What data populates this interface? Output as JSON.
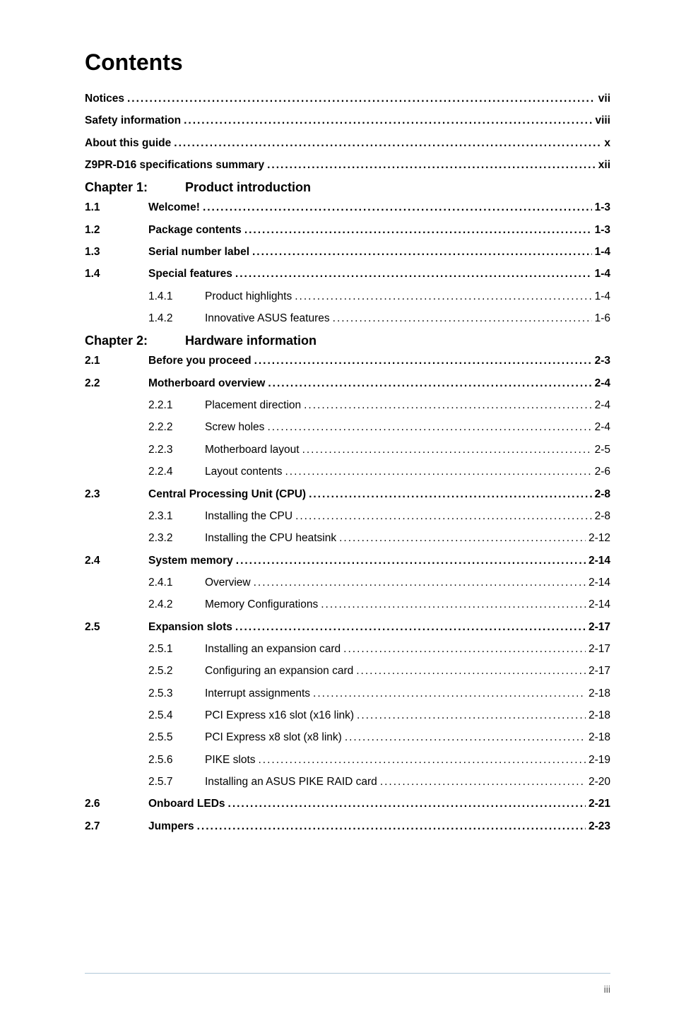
{
  "title": "Contents",
  "front": [
    {
      "label": "Notices",
      "page": "vii"
    },
    {
      "label": "Safety information",
      "page": "viii"
    },
    {
      "label": "About this guide",
      "page": "x"
    },
    {
      "label": "Z9PR-D16 specifications summary",
      "page": "xii"
    }
  ],
  "chapters": [
    {
      "num": "Chapter 1:",
      "title": "Product introduction",
      "sections": [
        {
          "num": "1.1",
          "label": "Welcome!",
          "page": "1-3",
          "bold": true,
          "subs": []
        },
        {
          "num": "1.2",
          "label": "Package contents",
          "page": "1-3",
          "bold": true,
          "subs": []
        },
        {
          "num": "1.3",
          "label": "Serial number label",
          "page": "1-4",
          "bold": true,
          "subs": []
        },
        {
          "num": "1.4",
          "label": "Special features",
          "page": "1-4",
          "bold": true,
          "subs": [
            {
              "num": "1.4.1",
              "label": "Product highlights",
              "page": "1-4"
            },
            {
              "num": "1.4.2",
              "label": "Innovative ASUS features",
              "page": "1-6"
            }
          ]
        }
      ]
    },
    {
      "num": "Chapter 2:",
      "title": "Hardware information",
      "sections": [
        {
          "num": "2.1",
          "label": "Before you proceed",
          "page": "2-3",
          "bold": true,
          "subs": []
        },
        {
          "num": "2.2",
          "label": "Motherboard overview",
          "page": "2-4",
          "bold": true,
          "subs": [
            {
              "num": "2.2.1",
              "label": "Placement direction",
              "page": "2-4"
            },
            {
              "num": "2.2.2",
              "label": "Screw holes",
              "page": "2-4"
            },
            {
              "num": "2.2.3",
              "label": "Motherboard layout",
              "page": "2-5"
            },
            {
              "num": "2.2.4",
              "label": "Layout contents",
              "page": "2-6"
            }
          ]
        },
        {
          "num": "2.3",
          "label": "Central Processing Unit (CPU)",
          "page": "2-8",
          "bold": true,
          "subs": [
            {
              "num": "2.3.1",
              "label": "Installing the CPU",
              "page": "2-8"
            },
            {
              "num": "2.3.2",
              "label": "Installing the CPU heatsink",
              "page": "2-12"
            }
          ]
        },
        {
          "num": "2.4",
          "label": "System memory",
          "page": "2-14",
          "bold": true,
          "subs": [
            {
              "num": "2.4.1",
              "label": "Overview",
              "page": "2-14"
            },
            {
              "num": "2.4.2",
              "label": "Memory Configurations",
              "page": "2-14"
            }
          ]
        },
        {
          "num": "2.5",
          "label": "Expansion slots",
          "page": "2-17",
          "bold": true,
          "subs": [
            {
              "num": "2.5.1",
              "label": "Installing an expansion card",
              "page": "2-17"
            },
            {
              "num": "2.5.2",
              "label": "Configuring an expansion card",
              "page": "2-17"
            },
            {
              "num": "2.5.3",
              "label": "Interrupt assignments",
              "page": "2-18"
            },
            {
              "num": "2.5.4",
              "label": "PCI Express x16 slot (x16 link)",
              "page": "2-18"
            },
            {
              "num": "2.5.5",
              "label": "PCI Express x8 slot (x8 link)",
              "page": "2-18"
            },
            {
              "num": "2.5.6",
              "label": "PIKE slots",
              "page": "2-19"
            },
            {
              "num": "2.5.7",
              "label": "Installing an ASUS PIKE RAID card",
              "page": "2-20"
            }
          ]
        },
        {
          "num": "2.6",
          "label": "Onboard LEDs",
          "page": "2-21",
          "bold": true,
          "subs": []
        },
        {
          "num": "2.7",
          "label": "Jumpers",
          "page": "2-23",
          "bold": true,
          "subs": []
        }
      ]
    }
  ],
  "page_number": "iii",
  "colors": {
    "footer_line": "#b0c8d8",
    "text": "#000000",
    "page_num_color": "#555555"
  }
}
